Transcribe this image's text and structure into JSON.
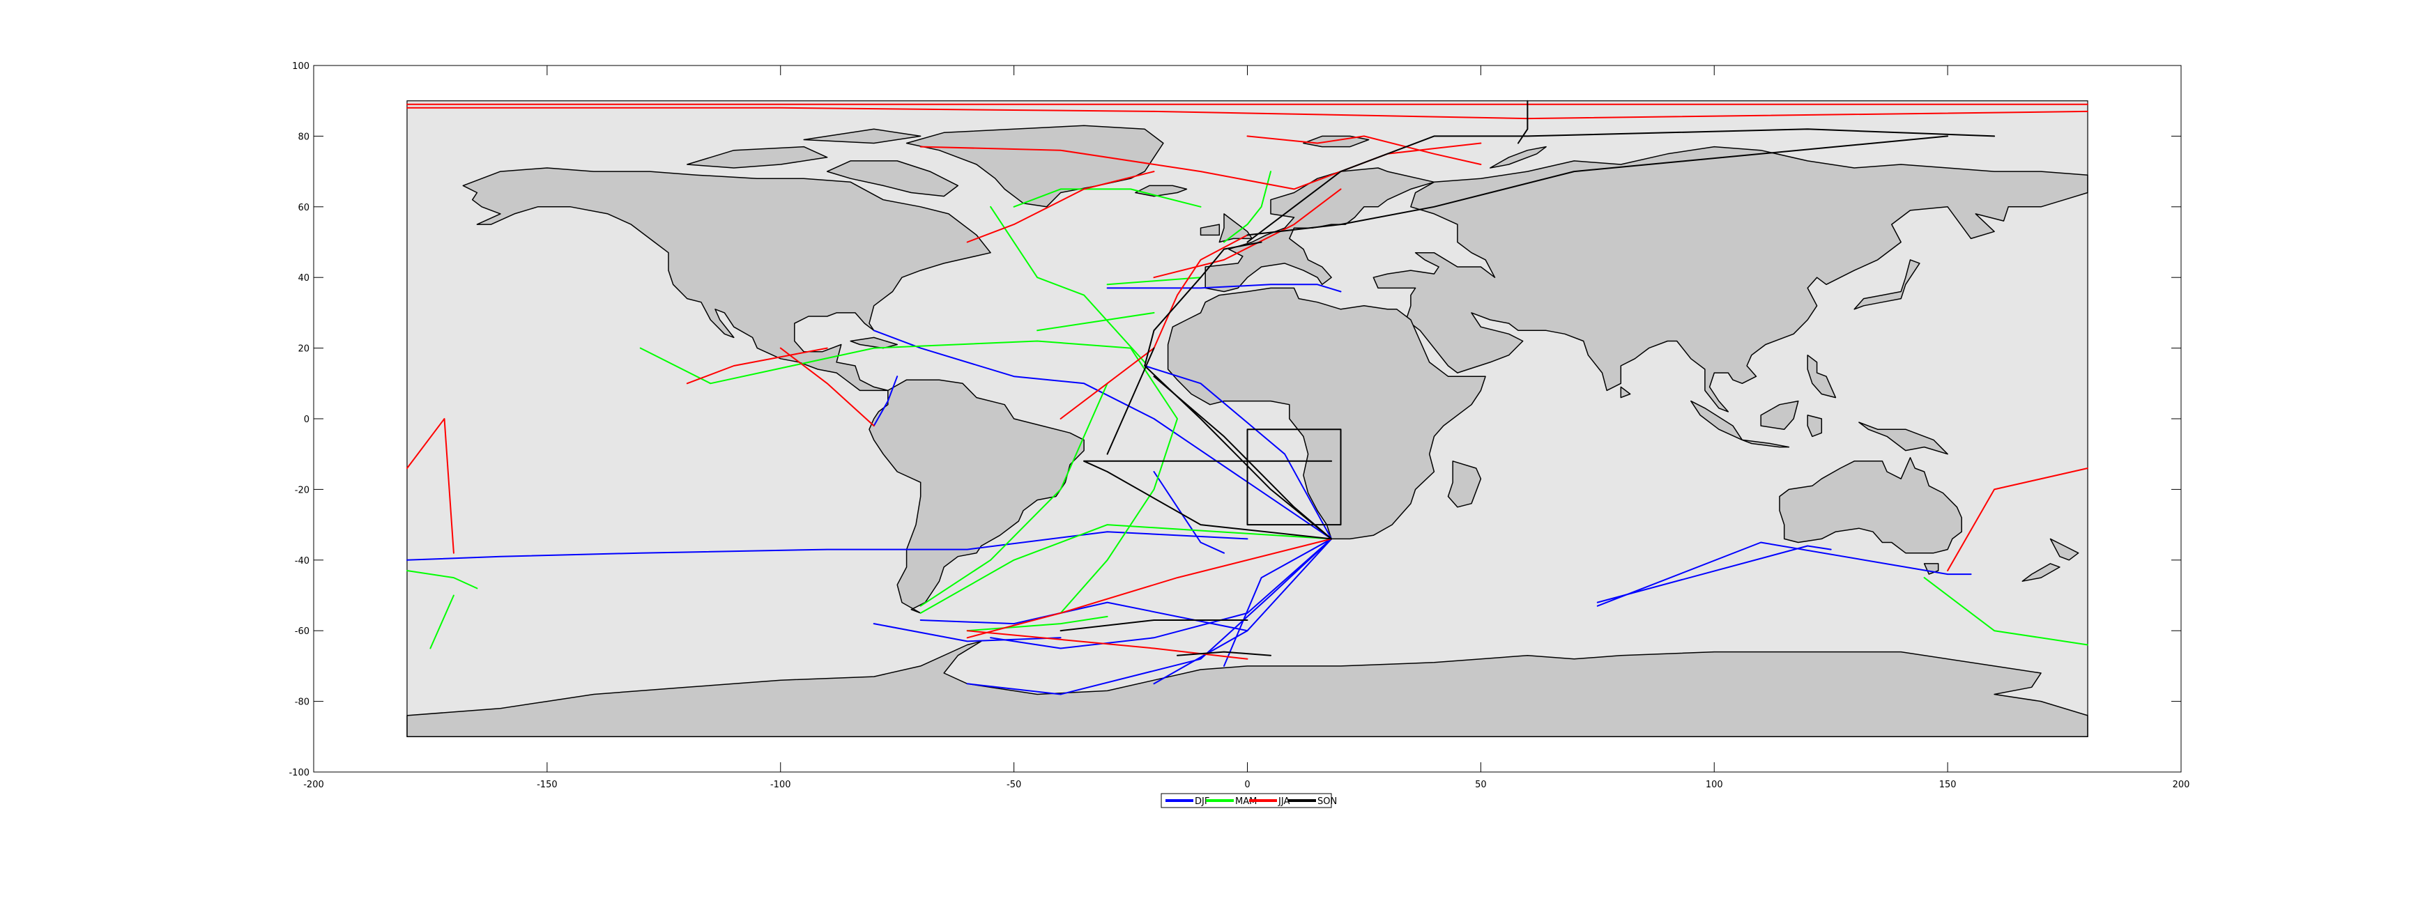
{
  "figure": {
    "background": "#ffffff",
    "ocean_color": "#e6e6e6",
    "land_color": "#c8c8c8",
    "coast_color": "#000000"
  },
  "chart_data": {
    "type": "map-tracks",
    "xlim": [
      -200,
      200
    ],
    "ylim": [
      -100,
      100
    ],
    "xticks": [
      "-200",
      "-150",
      "-100",
      "-50",
      "0",
      "50",
      "100",
      "150",
      "200"
    ],
    "yticks": [
      "100",
      "80",
      "60",
      "40",
      "20",
      "0",
      "-20",
      "-40",
      "-60",
      "-80",
      "-100"
    ],
    "map_extent": {
      "lon": [
        -180,
        180
      ],
      "lat": [
        -90,
        90
      ]
    },
    "legend": {
      "placement": "bottom-center"
    },
    "series": [
      {
        "name": "DJF",
        "color": "#0000ff",
        "tracks": [
          [
            [
              0,
              -34
            ],
            [
              -30,
              -32
            ],
            [
              -60,
              -37
            ],
            [
              -90,
              -37
            ],
            [
              -130,
              -38
            ],
            [
              -160,
              -39
            ],
            [
              -180,
              -40
            ]
          ],
          [
            [
              18,
              -34
            ],
            [
              0,
              -55
            ],
            [
              -20,
              -62
            ],
            [
              -40,
              -65
            ],
            [
              -55,
              -62
            ]
          ],
          [
            [
              18,
              -34
            ],
            [
              5,
              -50
            ],
            [
              -10,
              -68
            ],
            [
              -40,
              -78
            ],
            [
              -60,
              -75
            ]
          ],
          [
            [
              18,
              -34
            ],
            [
              -20,
              0
            ],
            [
              -35,
              10
            ],
            [
              -50,
              12
            ],
            [
              -70,
              20
            ],
            [
              -80,
              25
            ]
          ],
          [
            [
              18,
              -34
            ],
            [
              8,
              -10
            ],
            [
              -10,
              10
            ],
            [
              -22,
              15
            ]
          ],
          [
            [
              18,
              -34
            ],
            [
              0,
              -60
            ],
            [
              -20,
              -75
            ]
          ],
          [
            [
              18,
              -34
            ],
            [
              3,
              -45
            ],
            [
              -5,
              -70
            ]
          ],
          [
            [
              -70,
              -57
            ],
            [
              -50,
              -58
            ],
            [
              -30,
              -52
            ],
            [
              0,
              -60
            ]
          ],
          [
            [
              -80,
              -58
            ],
            [
              -60,
              -63
            ],
            [
              -40,
              -62
            ]
          ],
          [
            [
              75,
              -53
            ],
            [
              110,
              -35
            ],
            [
              150,
              -44
            ],
            [
              155,
              -44
            ]
          ],
          [
            [
              75,
              -52
            ],
            [
              120,
              -36
            ],
            [
              125,
              -37
            ]
          ],
          [
            [
              -80,
              -2
            ],
            [
              -77,
              5
            ],
            [
              -75,
              12
            ]
          ],
          [
            [
              -30,
              37
            ],
            [
              -10,
              37
            ],
            [
              5,
              38
            ],
            [
              15,
              38
            ],
            [
              20,
              36
            ]
          ],
          [
            [
              -20,
              -15
            ],
            [
              -15,
              -25
            ],
            [
              -10,
              -35
            ],
            [
              -5,
              -38
            ]
          ]
        ]
      },
      {
        "name": "MAM",
        "color": "#00ff00",
        "tracks": [
          [
            [
              -30,
              10
            ],
            [
              -40,
              -20
            ],
            [
              -55,
              -40
            ],
            [
              -70,
              -53
            ]
          ],
          [
            [
              18,
              -34
            ],
            [
              -30,
              -30
            ],
            [
              -50,
              -40
            ],
            [
              -70,
              -55
            ]
          ],
          [
            [
              -25,
              20
            ],
            [
              -45,
              22
            ],
            [
              -80,
              20
            ],
            [
              -115,
              10
            ],
            [
              -130,
              20
            ]
          ],
          [
            [
              -22,
              16
            ],
            [
              -35,
              35
            ],
            [
              -45,
              40
            ],
            [
              -55,
              60
            ]
          ],
          [
            [
              -10,
              60
            ],
            [
              -25,
              65
            ],
            [
              -40,
              65
            ],
            [
              -50,
              60
            ]
          ],
          [
            [
              -45,
              25
            ],
            [
              -20,
              30
            ]
          ],
          [
            [
              -30,
              38
            ],
            [
              -10,
              40
            ]
          ],
          [
            [
              -5,
              50
            ],
            [
              0,
              55
            ],
            [
              3,
              60
            ],
            [
              5,
              70
            ]
          ],
          [
            [
              -180,
              -43
            ],
            [
              -170,
              -45
            ],
            [
              -165,
              -48
            ]
          ],
          [
            [
              -170,
              -50
            ],
            [
              -175,
              -65
            ]
          ],
          [
            [
              145,
              -45
            ],
            [
              160,
              -60
            ],
            [
              180,
              -64
            ]
          ],
          [
            [
              -25,
              20
            ],
            [
              -20,
              10
            ],
            [
              -15,
              0
            ],
            [
              -20,
              -20
            ],
            [
              -30,
              -40
            ],
            [
              -40,
              -55
            ]
          ],
          [
            [
              -60,
              -60
            ],
            [
              -40,
              -58
            ],
            [
              -30,
              -56
            ]
          ]
        ]
      },
      {
        "name": "JJA",
        "color": "#ff0000",
        "tracks": [
          [
            [
              -180,
              88
            ],
            [
              -100,
              88
            ],
            [
              -20,
              87
            ],
            [
              60,
              85
            ],
            [
              180,
              87
            ]
          ],
          [
            [
              -180,
              89
            ],
            [
              -60,
              89
            ],
            [
              60,
              89
            ],
            [
              180,
              89
            ]
          ],
          [
            [
              -180,
              -14
            ],
            [
              -172,
              0
            ],
            [
              -170,
              -38
            ]
          ],
          [
            [
              -100,
              20
            ],
            [
              -90,
              10
            ],
            [
              -80,
              -2
            ]
          ],
          [
            [
              -70,
              77
            ],
            [
              -40,
              76
            ],
            [
              -10,
              70
            ],
            [
              10,
              65
            ],
            [
              30,
              75
            ],
            [
              50,
              78
            ]
          ],
          [
            [
              0,
              80
            ],
            [
              15,
              78
            ],
            [
              25,
              80
            ],
            [
              40,
              75
            ],
            [
              50,
              72
            ]
          ],
          [
            [
              -20,
              70
            ],
            [
              -35,
              65
            ],
            [
              -50,
              55
            ],
            [
              -60,
              50
            ]
          ],
          [
            [
              18,
              -34
            ],
            [
              -15,
              -45
            ],
            [
              -40,
              -55
            ],
            [
              -60,
              -62
            ]
          ],
          [
            [
              -60,
              -60
            ],
            [
              -20,
              -65
            ],
            [
              0,
              -68
            ]
          ],
          [
            [
              -40,
              0
            ],
            [
              -20,
              20
            ],
            [
              -15,
              35
            ],
            [
              -10,
              45
            ],
            [
              0,
              52
            ]
          ],
          [
            [
              -120,
              10
            ],
            [
              -110,
              15
            ],
            [
              -90,
              20
            ]
          ],
          [
            [
              150,
              -43
            ],
            [
              160,
              -20
            ],
            [
              180,
              -14
            ]
          ],
          [
            [
              -20,
              40
            ],
            [
              -5,
              45
            ],
            [
              10,
              55
            ],
            [
              20,
              65
            ]
          ]
        ]
      },
      {
        "name": "SON",
        "color": "#000000",
        "tracks": [
          [
            [
              18,
              -34
            ],
            [
              5,
              -20
            ],
            [
              -10,
              0
            ],
            [
              -22,
              15
            ],
            [
              -20,
              25
            ],
            [
              -10,
              40
            ],
            [
              -5,
              48
            ],
            [
              3,
              50
            ]
          ],
          [
            [
              18,
              -34
            ],
            [
              10,
              -25
            ],
            [
              -5,
              -5
            ],
            [
              -20,
              12
            ]
          ],
          [
            [
              18,
              -34
            ],
            [
              -10,
              -30
            ],
            [
              -30,
              -15
            ],
            [
              -35,
              -12
            ]
          ],
          [
            [
              0,
              50
            ],
            [
              10,
              60
            ],
            [
              20,
              70
            ],
            [
              40,
              80
            ],
            [
              60,
              80
            ],
            [
              120,
              82
            ],
            [
              160,
              80
            ]
          ],
          [
            [
              0,
              52
            ],
            [
              20,
              55
            ],
            [
              40,
              60
            ],
            [
              70,
              70
            ],
            [
              110,
              75
            ],
            [
              150,
              80
            ]
          ],
          [
            [
              -35,
              -12
            ],
            [
              -10,
              -12
            ],
            [
              18,
              -12
            ]
          ],
          [
            [
              0,
              -3
            ],
            [
              0,
              -30
            ],
            [
              20,
              -30
            ],
            [
              20,
              -3
            ],
            [
              0,
              -3
            ]
          ],
          [
            [
              -40,
              -60
            ],
            [
              -20,
              -57
            ],
            [
              0,
              -57
            ]
          ],
          [
            [
              -15,
              -67
            ],
            [
              -5,
              -66
            ],
            [
              5,
              -67
            ]
          ],
          [
            [
              60,
              90
            ],
            [
              60,
              82
            ],
            [
              58,
              78
            ]
          ],
          [
            [
              -20,
              20
            ],
            [
              -25,
              5
            ],
            [
              -30,
              -10
            ]
          ]
        ]
      }
    ]
  }
}
